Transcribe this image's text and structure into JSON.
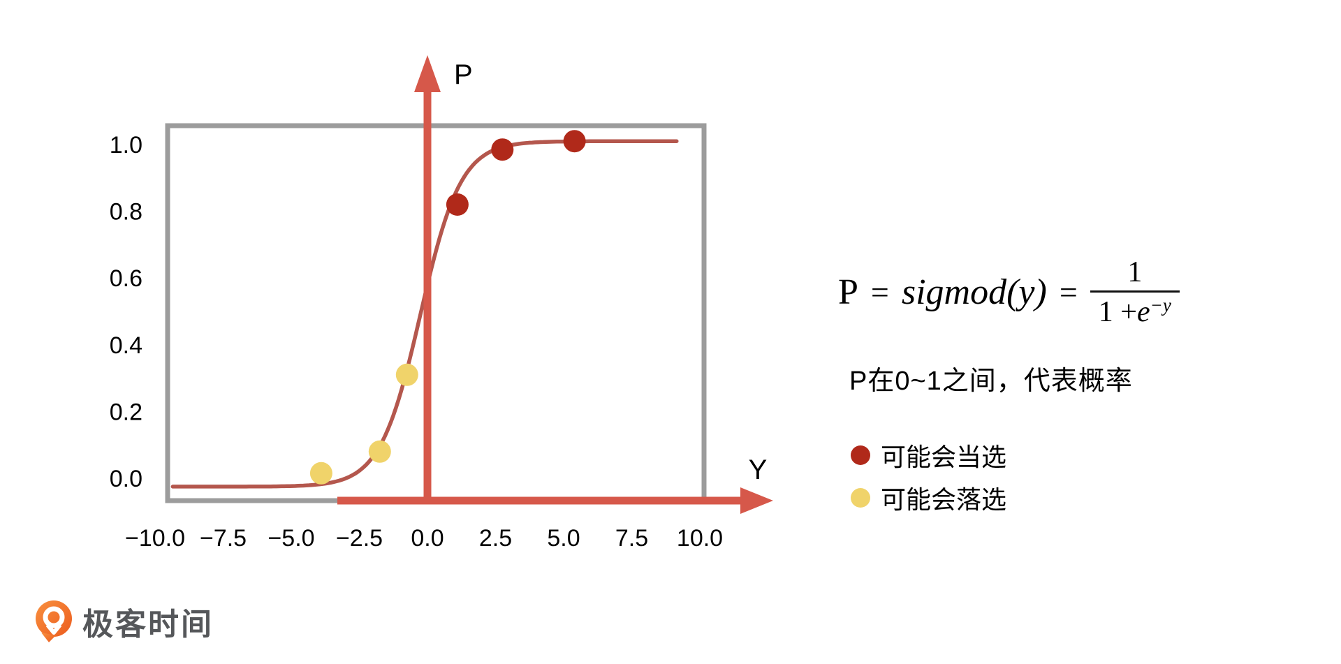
{
  "colors": {
    "axis_red": "#d6584a",
    "frame_gray": "#9c9c9c",
    "curve_red": "#b4574d",
    "dot_elected": "#b0291a",
    "dot_rejected": "#f0d36a",
    "text": "#000000",
    "fraction_bar": "#111111",
    "logo_orange": "#f2762b",
    "logo_text_gray": "#55575a"
  },
  "chart_data": {
    "type": "line",
    "title": "",
    "xlabel": "Y",
    "ylabel": "P",
    "x_ticks": [
      -10.0,
      -7.5,
      -5.0,
      -2.5,
      0.0,
      2.5,
      5.0,
      7.5,
      10.0
    ],
    "y_ticks": [
      0.0,
      0.2,
      0.4,
      0.6,
      0.8,
      1.0
    ],
    "xlim": [
      -9.5,
      10.2
    ],
    "ylim": [
      -0.07,
      1.06
    ],
    "grid": false,
    "legend_position": "right",
    "curve": {
      "name": "sigmoid",
      "expression": "P = sigmod(y) = 1/(1+e^-y)",
      "color": "#b4574d",
      "fit": {
        "k": 1.35,
        "b": 0.34,
        "scale": 1.035,
        "offset": -0.025,
        "x_start": -9.35,
        "x_end": 9.2
      }
    },
    "series": [
      {
        "key": "elected",
        "name": "可能会当选",
        "type": "scatter",
        "color": "#b0291a",
        "points": [
          [
            1.1,
            0.82
          ],
          [
            2.75,
            0.985
          ],
          [
            5.4,
            1.01
          ]
        ]
      },
      {
        "key": "rejected",
        "name": "可能会落选",
        "type": "scatter",
        "color": "#f0d36a",
        "points": [
          [
            -3.9,
            0.015
          ],
          [
            -1.75,
            0.08
          ],
          [
            -0.75,
            0.31
          ]
        ]
      }
    ]
  },
  "panel": {
    "formula": {
      "lhs": "P",
      "eq1": "=",
      "body": "sigmod(y)",
      "eq2": "=",
      "num": "1",
      "den_pre": "1 + ",
      "den_e": "e",
      "den_sup": "−y"
    },
    "note": "P在0~1之间，代表概率"
  },
  "footer": {
    "logo_text": "极客时间"
  }
}
